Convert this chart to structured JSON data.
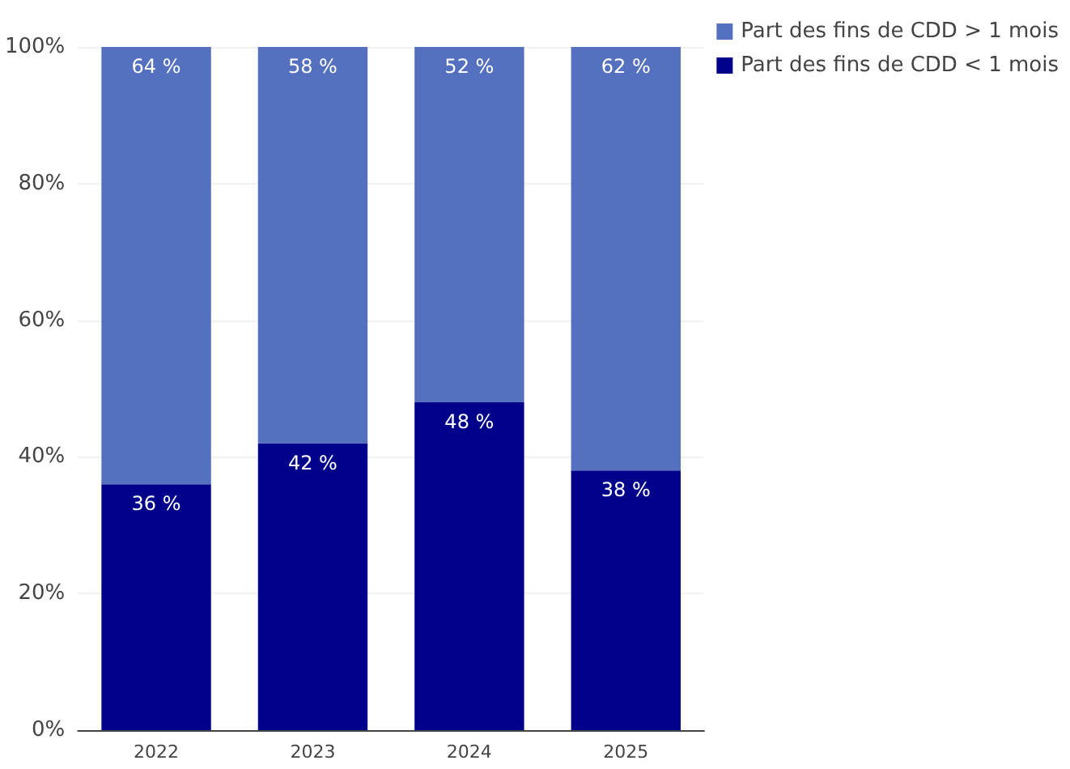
{
  "chart_data": {
    "type": "bar",
    "stacked": true,
    "categories": [
      "2022",
      "2023",
      "2024",
      "2025"
    ],
    "series": [
      {
        "name": "Part des fins de CDD < 1 mois",
        "color": "#00008b",
        "values": [
          36,
          42,
          48,
          38
        ],
        "value_labels": [
          "36 %",
          "42 %",
          "48 %",
          "38 %"
        ]
      },
      {
        "name": "Part des fins de CDD > 1 mois",
        "color": "#5470be",
        "values": [
          64,
          58,
          52,
          62
        ],
        "value_labels": [
          "64 %",
          "58 %",
          "52 %",
          "62 %"
        ]
      }
    ],
    "ylim": [
      0,
      100
    ],
    "yticks": [
      {
        "value": 0,
        "label": "0%"
      },
      {
        "value": 20,
        "label": "20%"
      },
      {
        "value": 40,
        "label": "40%"
      },
      {
        "value": 60,
        "label": "60%"
      },
      {
        "value": 80,
        "label": "80%"
      },
      {
        "value": 100,
        "label": "100%"
      }
    ],
    "grid": "y",
    "legend": "top right"
  }
}
